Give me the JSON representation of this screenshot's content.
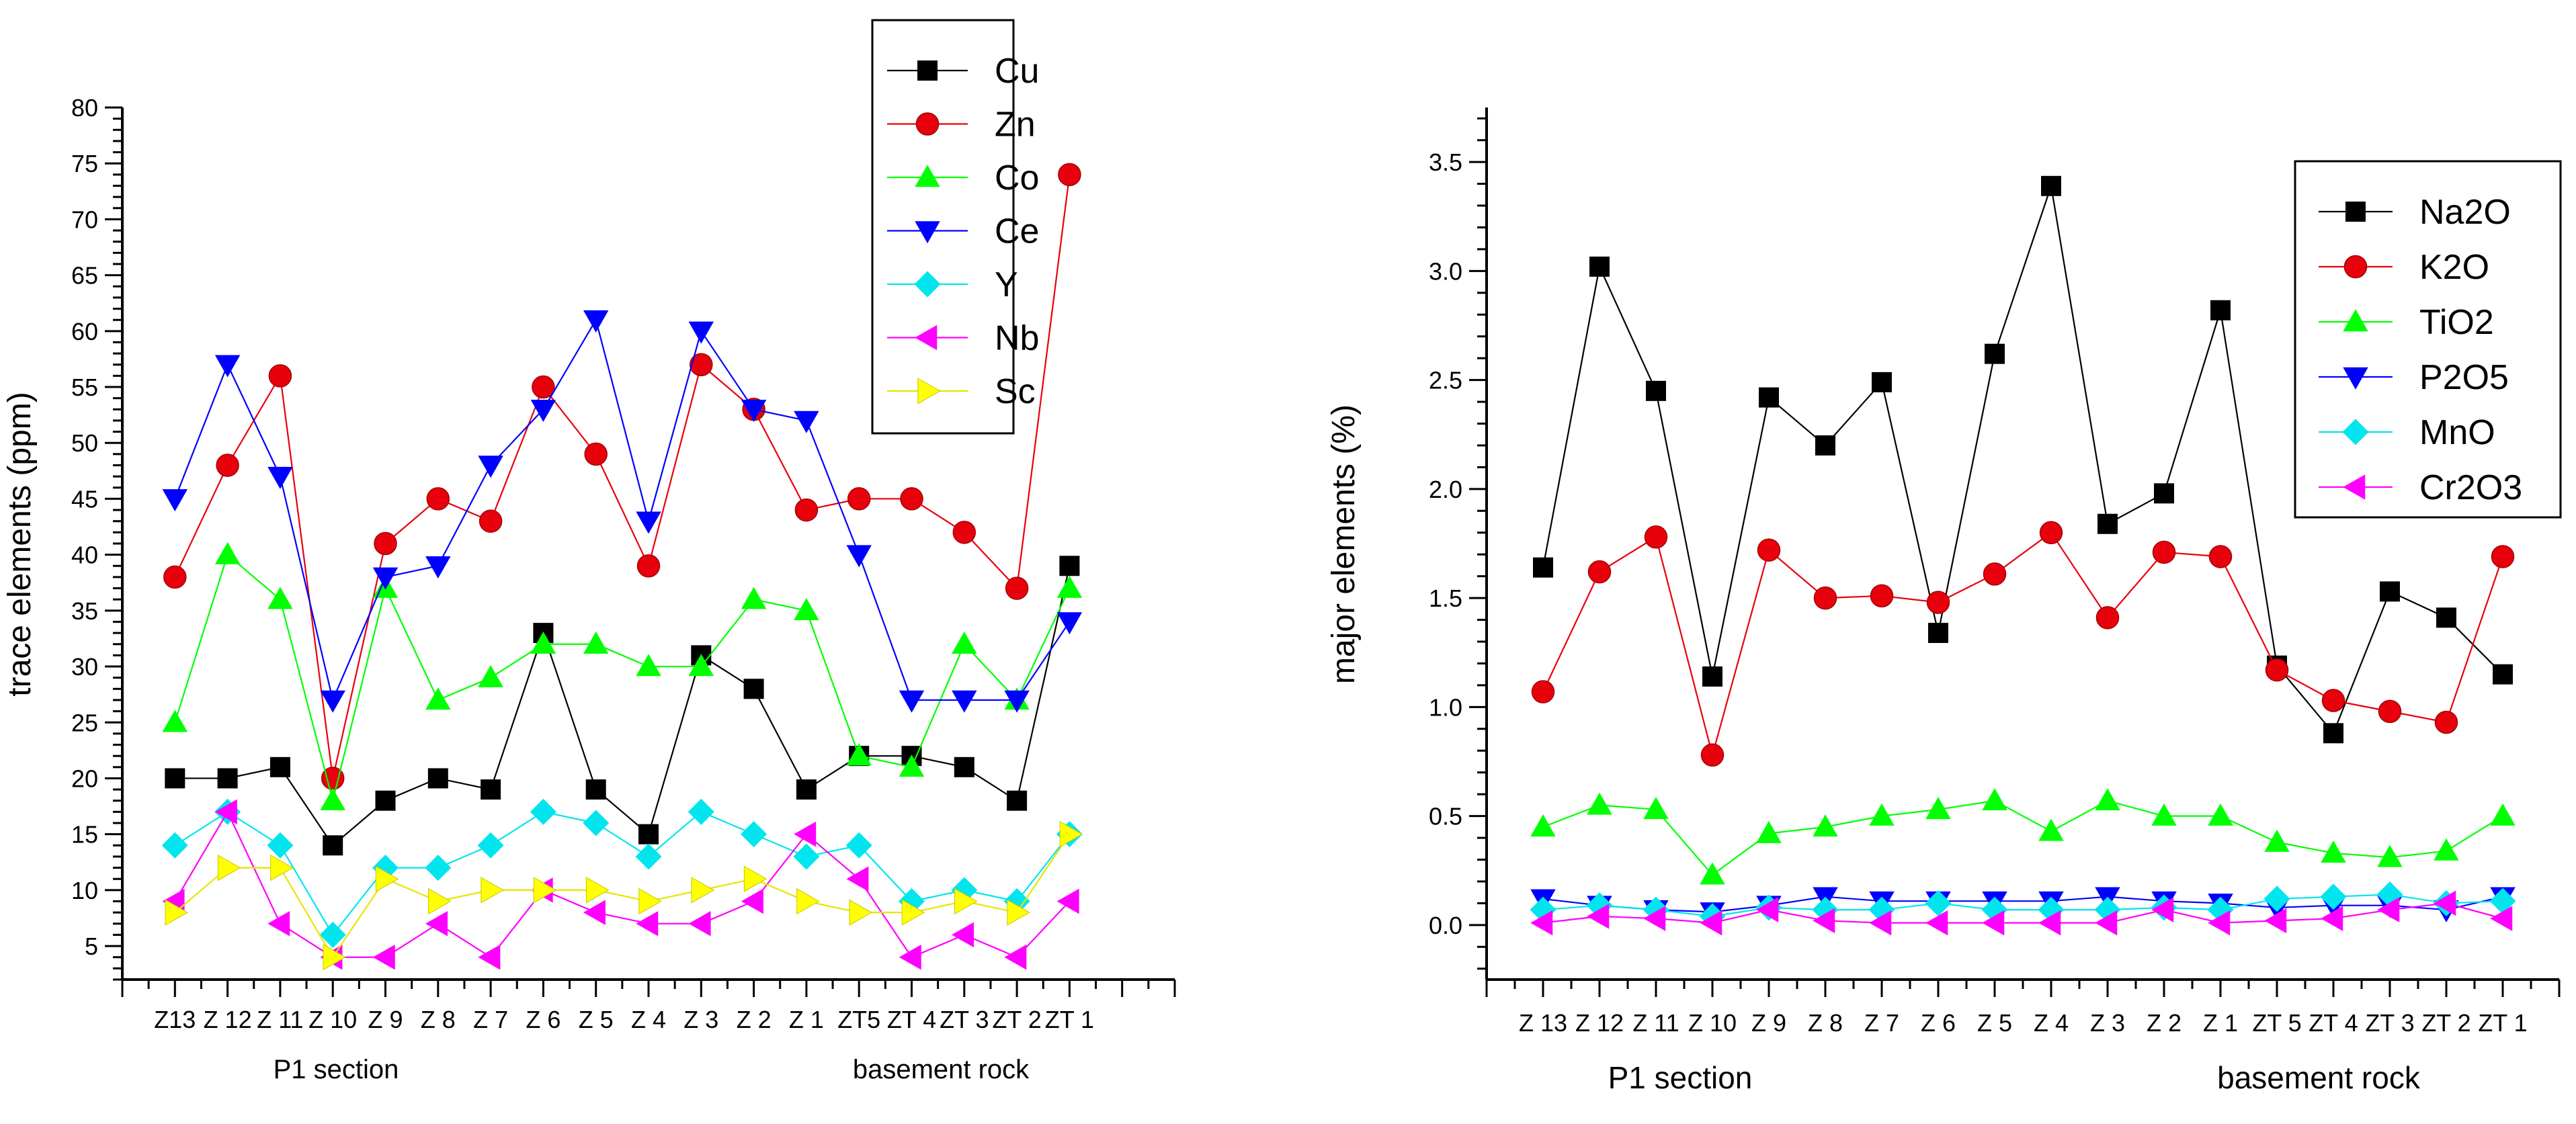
{
  "chart_data": [
    {
      "type": "line",
      "title": "",
      "xlabel": "",
      "ylabel": "trace elements (ppm)",
      "ylim": [
        2,
        80
      ],
      "yticks": [
        5,
        10,
        15,
        20,
        25,
        30,
        35,
        40,
        45,
        50,
        55,
        60,
        65,
        70,
        75,
        80
      ],
      "categories": [
        "Z13",
        "Z 12",
        "Z 11",
        "Z 10",
        "Z 9",
        "Z 8",
        "Z 7",
        "Z 6",
        "Z 5",
        "Z 4",
        "Z 3",
        "Z 2",
        "Z 1",
        "ZT5",
        "ZT 4",
        "ZT 3",
        "ZT 2",
        "ZT 1"
      ],
      "section_labels": [
        "P1 section",
        "basement rock"
      ],
      "legend_position": "top-right",
      "series": [
        {
          "name": "Cu",
          "color": "#000000",
          "marker": "square",
          "values": [
            20,
            20,
            21,
            14,
            18,
            20,
            19,
            33,
            19,
            15,
            31,
            28,
            19,
            22,
            22,
            21,
            18,
            39
          ]
        },
        {
          "name": "Zn",
          "color": "#e8000d",
          "marker": "circle",
          "values": [
            38,
            48,
            56,
            20,
            41,
            45,
            43,
            55,
            49,
            39,
            57,
            53,
            44,
            45,
            45,
            42,
            37,
            74
          ]
        },
        {
          "name": "Co",
          "color": "#00ff00",
          "marker": "triangle-up",
          "values": [
            25,
            40,
            36,
            18,
            37,
            27,
            29,
            32,
            32,
            30,
            30,
            36,
            35,
            22,
            21,
            32,
            27,
            37
          ]
        },
        {
          "name": "Ce",
          "color": "#0000ff",
          "marker": "triangle-down",
          "values": [
            45,
            57,
            47,
            27,
            38,
            39,
            48,
            53,
            61,
            43,
            60,
            53,
            52,
            40,
            27,
            27,
            27,
            34
          ]
        },
        {
          "name": "Y",
          "color": "#00e5ee",
          "marker": "diamond",
          "values": [
            14,
            17,
            14,
            6,
            12,
            12,
            14,
            17,
            16,
            13,
            17,
            15,
            13,
            14,
            9,
            10,
            9,
            15
          ]
        },
        {
          "name": "Nb",
          "color": "#ff00ff",
          "marker": "triangle-left",
          "values": [
            9,
            17,
            7,
            4,
            4,
            7,
            4,
            10,
            8,
            7,
            7,
            9,
            15,
            11,
            4,
            6,
            4,
            9
          ]
        },
        {
          "name": "Sc",
          "color": "#ffff00",
          "marker": "triangle-right",
          "values": [
            8,
            12,
            12,
            4,
            11,
            9,
            10,
            10,
            10,
            9,
            10,
            11,
            9,
            8,
            8,
            9,
            8,
            15
          ]
        }
      ]
    },
    {
      "type": "line",
      "title": "",
      "xlabel": "",
      "ylabel": "major elements (%)",
      "ylim": [
        -0.25,
        3.75
      ],
      "yticks": [
        "0.0",
        "0.5",
        "1.0",
        "1.5",
        "2.0",
        "2.5",
        "3.0",
        "3.5"
      ],
      "categories": [
        "Z 13",
        "Z 12",
        "Z 11",
        "Z 10",
        "Z 9",
        "Z 8",
        "Z 7",
        "Z 6",
        "Z 5",
        "Z 4",
        "Z 3",
        "Z 2",
        "Z 1",
        "ZT 5",
        "ZT 4",
        "ZT 3",
        "ZT 2",
        "ZT 1"
      ],
      "section_labels": [
        "P1 section",
        "basement rock"
      ],
      "legend_position": "top-right",
      "series": [
        {
          "name": "Na2O",
          "color": "#000000",
          "marker": "square",
          "values": [
            1.64,
            3.02,
            2.45,
            1.14,
            2.42,
            2.2,
            2.49,
            1.34,
            2.62,
            3.39,
            1.84,
            1.98,
            2.82,
            1.19,
            0.88,
            1.53,
            1.41,
            1.15
          ]
        },
        {
          "name": "K2O",
          "color": "#e8000d",
          "marker": "circle",
          "values": [
            1.07,
            1.62,
            1.78,
            0.78,
            1.72,
            1.5,
            1.51,
            1.48,
            1.61,
            1.8,
            1.41,
            1.71,
            1.69,
            1.17,
            1.03,
            0.98,
            0.93,
            1.69
          ]
        },
        {
          "name": "TiO2",
          "color": "#00ff00",
          "marker": "triangle-up",
          "values": [
            0.45,
            0.55,
            0.53,
            0.23,
            0.42,
            0.45,
            0.5,
            0.53,
            0.57,
            0.43,
            0.57,
            0.5,
            0.5,
            0.38,
            0.33,
            0.31,
            0.34,
            0.5
          ]
        },
        {
          "name": "P2O5",
          "color": "#0000ff",
          "marker": "triangle-down",
          "values": [
            0.12,
            0.09,
            0.07,
            0.06,
            0.09,
            0.13,
            0.11,
            0.11,
            0.11,
            0.11,
            0.13,
            0.11,
            0.1,
            0.08,
            0.09,
            0.09,
            0.07,
            0.13
          ]
        },
        {
          "name": "MnO",
          "color": "#00e5ee",
          "marker": "diamond",
          "values": [
            0.07,
            0.09,
            0.07,
            0.04,
            0.08,
            0.07,
            0.07,
            0.1,
            0.07,
            0.07,
            0.07,
            0.08,
            0.07,
            0.12,
            0.13,
            0.14,
            0.1,
            0.11
          ]
        },
        {
          "name": "Cr2O3",
          "color": "#ff00ff",
          "marker": "triangle-left",
          "values": [
            0.01,
            0.04,
            0.03,
            0.01,
            0.07,
            0.02,
            0.01,
            0.01,
            0.01,
            0.01,
            0.01,
            0.07,
            0.01,
            0.02,
            0.03,
            0.07,
            0.1,
            0.03
          ]
        }
      ]
    }
  ]
}
